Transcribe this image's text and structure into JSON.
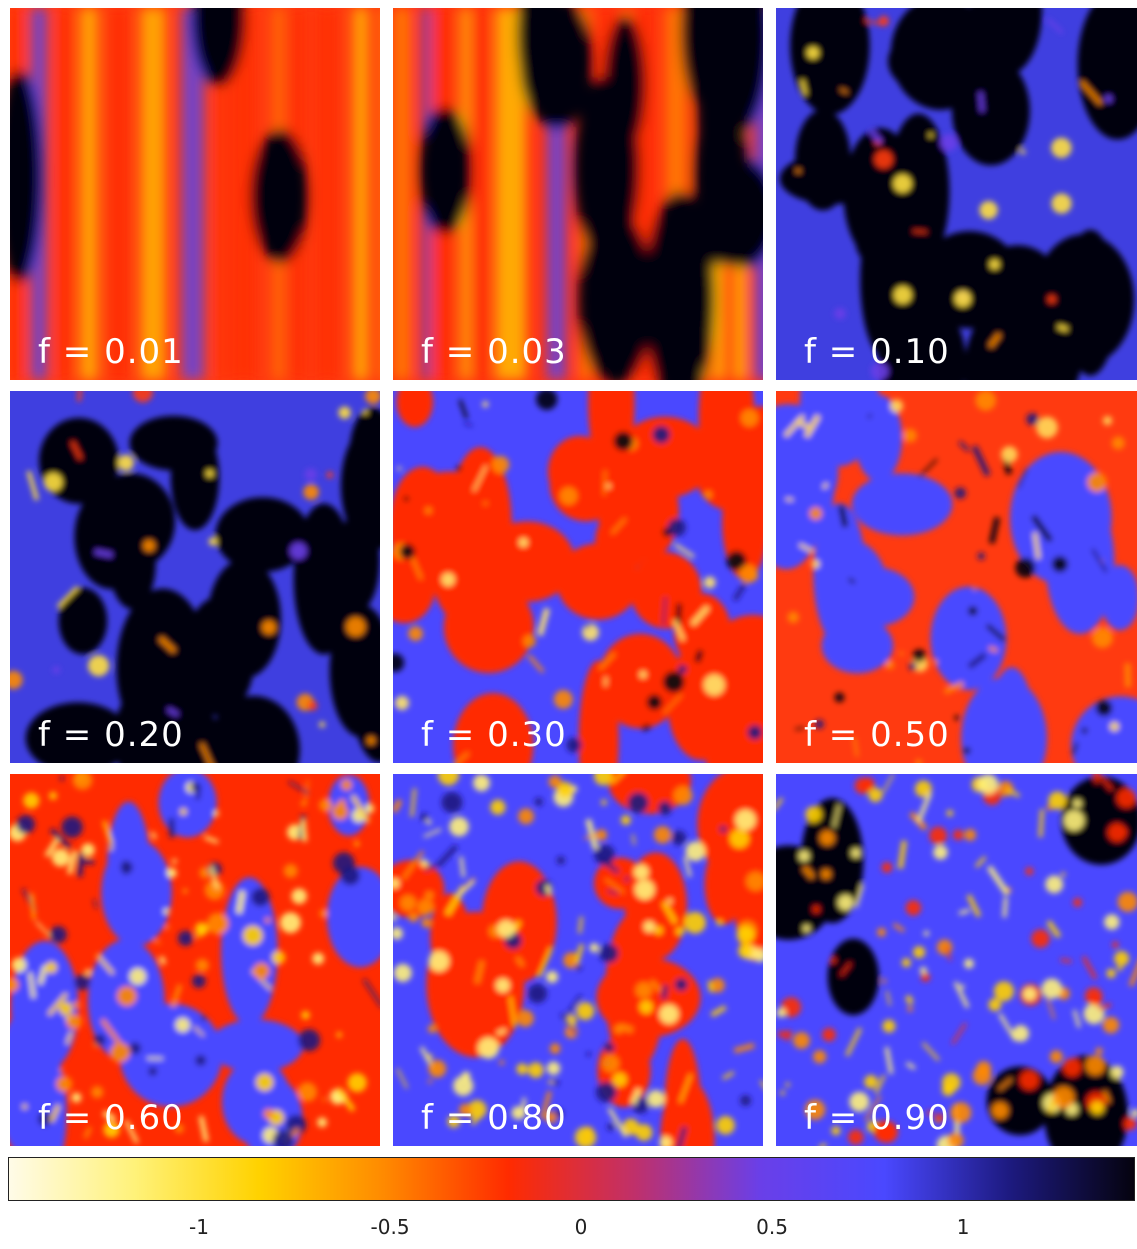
{
  "panels": [
    {
      "label": "f = 0.01",
      "style": "striped-red"
    },
    {
      "label": "f = 0.03",
      "style": "striped-mixed"
    },
    {
      "label": "f = 0.10",
      "style": "blobby-dark"
    },
    {
      "label": "f = 0.20",
      "style": "blobby-dark"
    },
    {
      "label": "f = 0.30",
      "style": "cellular-red"
    },
    {
      "label": "f = 0.50",
      "style": "cellular-blue"
    },
    {
      "label": "f = 0.60",
      "style": "speckled-red"
    },
    {
      "label": "f = 0.80",
      "style": "speckled-blue"
    },
    {
      "label": "f = 0.90",
      "style": "speckled-dark"
    }
  ],
  "colorbar": {
    "ticks": [
      "-1",
      "-0.5",
      "0",
      "0.5",
      "1"
    ],
    "tick_values": [
      -1,
      -0.5,
      0,
      0.5,
      1
    ],
    "range": [
      -1.5,
      1.45
    ],
    "colors": [
      "#fffbe8",
      "#fff27a",
      "#ffd200",
      "#ff8a00",
      "#ff2b00",
      "#c0306a",
      "#6a3fe8",
      "#4a48ff",
      "#1d1a80",
      "#05030f"
    ]
  }
}
